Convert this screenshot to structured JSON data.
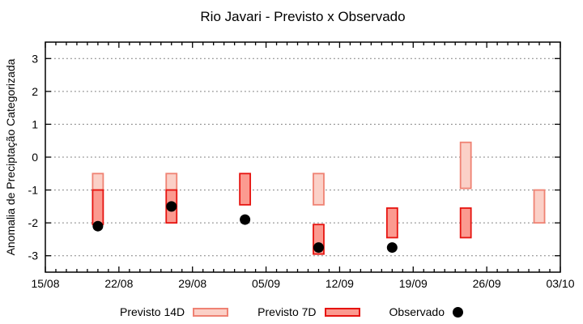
{
  "chart_data": {
    "type": "bar",
    "subtype": "floating-range-bars-with-scatter",
    "title": "Rio Javari - Previsto x Observado",
    "ylabel": "Anomalia de Preciptação Categorizada",
    "xlabel": "",
    "y_axis": {
      "min": -3.5,
      "max": 3.5,
      "ticks": [
        3,
        2,
        1,
        0,
        -1,
        -2,
        -3
      ],
      "grid": "horizontal-dotted"
    },
    "x_axis": {
      "start_label": "15/08",
      "end_label": "03/10",
      "total_days": 49,
      "tick_labels": [
        "15/08",
        "22/08",
        "29/08",
        "05/09",
        "12/09",
        "19/09",
        "26/09",
        "03/10"
      ],
      "tick_days": [
        0,
        7,
        14,
        21,
        28,
        35,
        42,
        49
      ],
      "minor_tick_interval_days": 1
    },
    "series": [
      {
        "id": "previsto-14d",
        "name": "Previsto 14D",
        "type": "range-bar",
        "fill": "#fbd0c7",
        "border": "#ef8273",
        "points": [
          {
            "date": "20/08",
            "day": 5,
            "high": -0.5,
            "low": -1.0
          },
          {
            "date": "27/08",
            "day": 12,
            "high": -0.5,
            "low": -1.0
          },
          {
            "date": "10/09",
            "day": 26,
            "high": -0.5,
            "low": -1.45
          },
          {
            "date": "24/09",
            "day": 40,
            "high": 0.45,
            "low": -0.95
          },
          {
            "date": "01/10",
            "day": 47,
            "high": -1.0,
            "low": -2.0
          }
        ]
      },
      {
        "id": "previsto-7d",
        "name": "Previsto 7D",
        "type": "range-bar",
        "fill": "#fb9a90",
        "border": "#e61410",
        "points": [
          {
            "date": "20/08",
            "day": 5,
            "high": -1.0,
            "low": -2.05
          },
          {
            "date": "27/08",
            "day": 12,
            "high": -1.0,
            "low": -2.0
          },
          {
            "date": "03/09",
            "day": 19,
            "high": -0.5,
            "low": -1.45
          },
          {
            "date": "10/09",
            "day": 26,
            "high": -2.05,
            "low": -2.95
          },
          {
            "date": "17/09",
            "day": 33,
            "high": -1.55,
            "low": -2.45
          },
          {
            "date": "24/09",
            "day": 40,
            "high": -1.55,
            "low": -2.45
          }
        ]
      },
      {
        "id": "observado",
        "name": "Observado",
        "type": "scatter",
        "color": "#000000",
        "points": [
          {
            "date": "20/08",
            "day": 5,
            "value": -2.1
          },
          {
            "date": "27/08",
            "day": 12,
            "value": -1.5
          },
          {
            "date": "03/09",
            "day": 19,
            "value": -1.9
          },
          {
            "date": "10/09",
            "day": 26,
            "value": -2.75
          },
          {
            "date": "17/09",
            "day": 33,
            "value": -2.75
          }
        ]
      }
    ],
    "legend": {
      "position": "bottom",
      "items": [
        "Previsto 14D",
        "Previsto 7D",
        "Observado"
      ]
    },
    "colors": {
      "background": "#ffffff",
      "axis": "#000000",
      "grid": "#7a7a7a",
      "text": "#000000"
    }
  }
}
